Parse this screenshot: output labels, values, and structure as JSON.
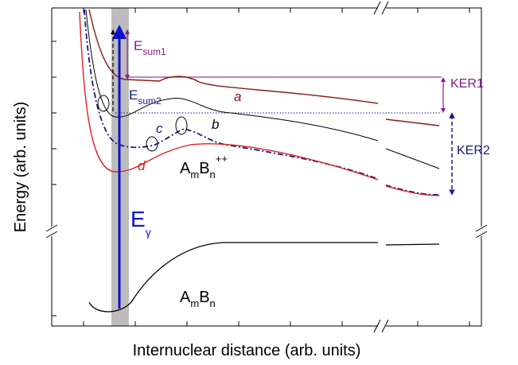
{
  "axes": {
    "y_label": "Energy (arb. units)",
    "x_label": "Internuclear distance (arb. units)"
  },
  "labels": {
    "e_sum1": {
      "base": "E",
      "sub": "sum1"
    },
    "e_sum2": {
      "base": "E",
      "sub": "sum2"
    },
    "ker1": "KER1",
    "ker2": "KER2",
    "e_gamma": {
      "base": "E",
      "sub": "γ"
    },
    "curve_a": "a",
    "curve_b": "b",
    "curve_c": "c",
    "curve_d": "d",
    "ion": {
      "a": "A",
      "m": "m",
      "b": "B",
      "n": "n",
      "charge": "++"
    },
    "neutral": {
      "a": "A",
      "m": "m",
      "b": "B",
      "n": "n"
    }
  }
}
